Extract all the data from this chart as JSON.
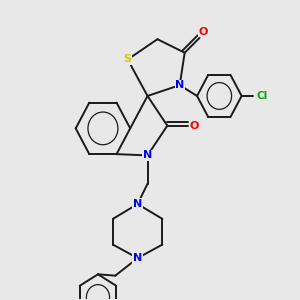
{
  "background_color": "#e8e8e8",
  "bond_color": "#1a1a1a",
  "atom_colors": {
    "S": "#cccc00",
    "N": "#0000ee",
    "O": "#ff0000",
    "Cl": "#00aa00",
    "C": "#1a1a1a"
  },
  "figsize": [
    3.0,
    3.0
  ],
  "dpi": 100,
  "lw": 1.4
}
